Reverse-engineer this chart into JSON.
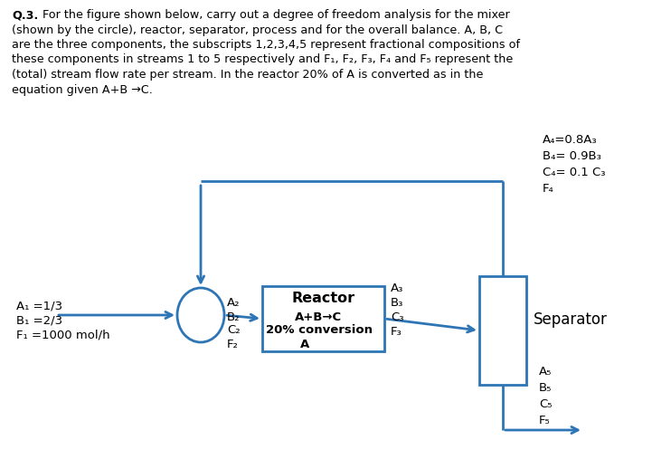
{
  "bg_color": "#ffffff",
  "line_color": "#2e75b6",
  "text_color": "#000000",
  "fig_width": 7.42,
  "fig_height": 5.18,
  "stream1_labels": [
    "A₁ =1/3",
    "B₁ =2/3",
    "F₁ =1000 mol/h"
  ],
  "stream2_labels": [
    "A₂",
    "B₂",
    "C₂",
    "F₂"
  ],
  "stream3_labels": [
    "A₃",
    "B₃",
    "C₃",
    "F₃"
  ],
  "stream4_labels": [
    "A₄=0.8A₃",
    "B₄= 0.9B₃",
    "C₄= 0.1 C₃",
    "F₄"
  ],
  "stream5_labels": [
    "A₅",
    "B₅",
    "C₅",
    "F₅"
  ],
  "reactor_label": "Reactor",
  "reactor_sublabel1": "A+B→C",
  "reactor_sublabel2": "20% conversion",
  "reactor_sublabel3": "A",
  "separator_label": "Separator",
  "title_bold": "Q.3.",
  "title_lines": [
    " For the figure shown below, carry out a degree of freedom analysis for the mixer",
    "(shown by the circle), reactor, separator, process and for the overall balance. A, B, C",
    "are the three components, the subscripts 1,2,3,4,5 represent fractional compositions of",
    "these components in streams 1 to 5 respectively and F₁, F₂, F₃, F₄ and F₅ represent the",
    "(total) stream flow rate per stream. In the reactor 20% of A is converted as in the",
    "equation given A+B →C."
  ]
}
